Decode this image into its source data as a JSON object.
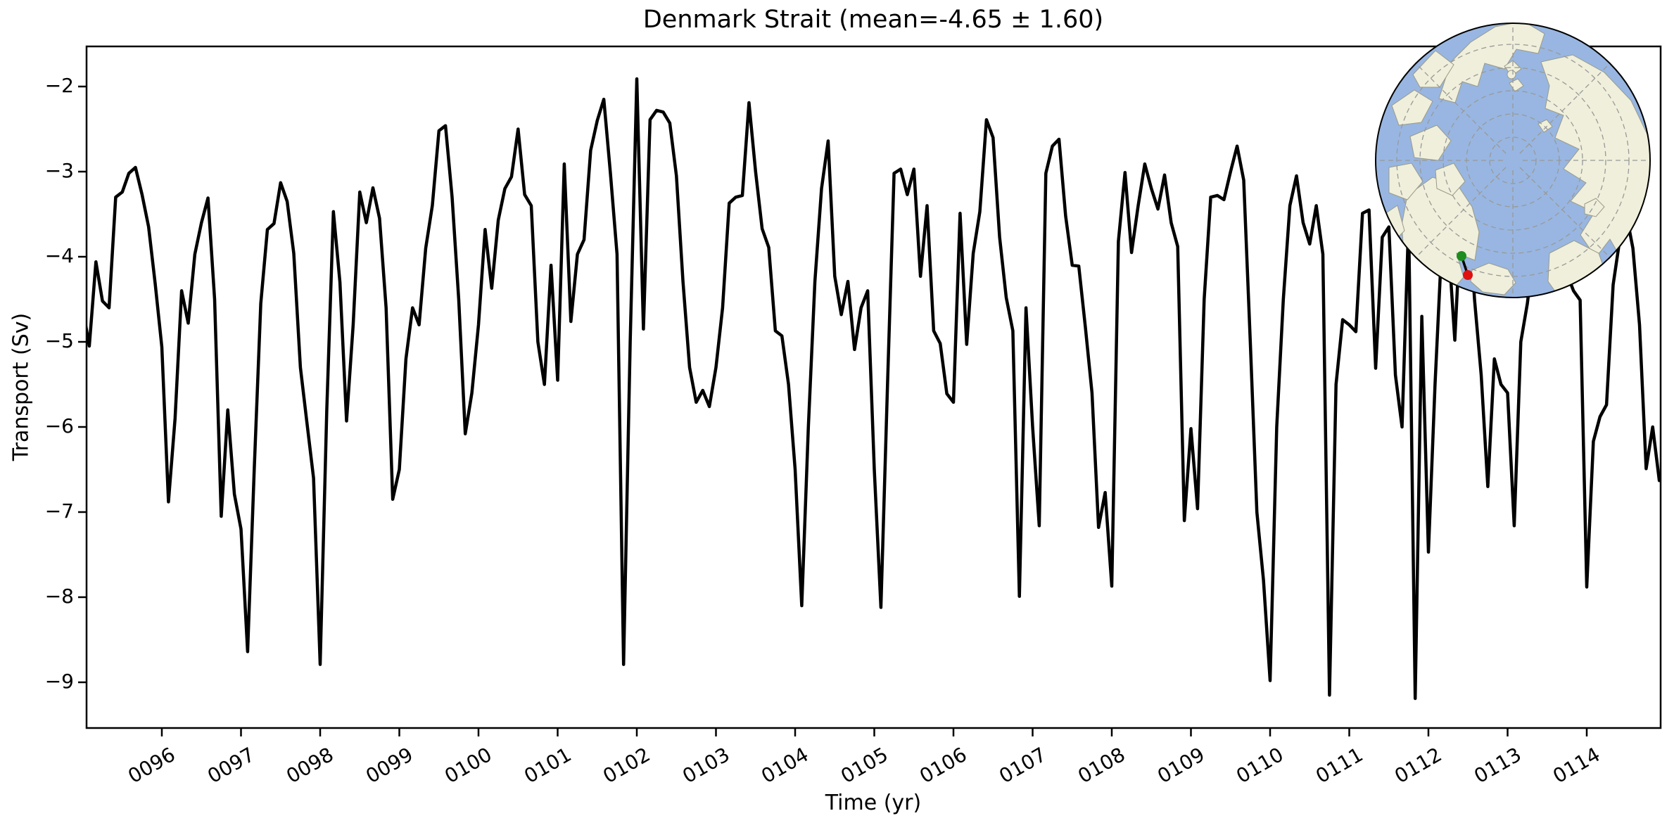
{
  "title": "Denmark Strait (mean=-4.65 ± 1.60)",
  "axes": {
    "xlabel": "Time (yr)",
    "ylabel": "Transport (Sv)",
    "x_tick_labels": [
      "0096",
      "0097",
      "0098",
      "0099",
      "0100",
      "0101",
      "0102",
      "0103",
      "0104",
      "0105",
      "0106",
      "0107",
      "0108",
      "0109",
      "0110",
      "0111",
      "0112",
      "0113",
      "0114"
    ],
    "x_tick_years": [
      96,
      97,
      98,
      99,
      100,
      101,
      102,
      103,
      104,
      105,
      106,
      107,
      108,
      109,
      110,
      111,
      112,
      113,
      114
    ],
    "y_tick_labels": [
      "−2",
      "−3",
      "−4",
      "−5",
      "−6",
      "−7",
      "−8",
      "−9"
    ],
    "y_tick_values": [
      -2,
      -3,
      -4,
      -5,
      -6,
      -7,
      -8,
      -9
    ],
    "xlim": [
      95.05,
      114.96
    ],
    "ylim": [
      -9.54,
      -1.53
    ]
  },
  "chart_data": {
    "type": "line",
    "title": "Denmark Strait (mean=-4.65 ± 1.60)",
    "xlabel": "Time (yr)",
    "ylabel": "Transport (Sv)",
    "mean": -4.65,
    "std": 1.6,
    "grid": false,
    "legend": "none",
    "line_color": "#000000",
    "line_width": 4.5,
    "frequency": "monthly",
    "start_year": 95,
    "start_month": 1,
    "xlim": [
      95.05,
      114.96
    ],
    "ylim": [
      -9.54,
      -1.53
    ],
    "series": [
      {
        "name": "Denmark Strait transport (Sv)",
        "values": [
          -4.6,
          -5.05,
          -4.06,
          -4.52,
          -4.6,
          -3.3,
          -3.24,
          -3.02,
          -2.95,
          -3.27,
          -3.65,
          -4.32,
          -5.06,
          -6.88,
          -5.9,
          -4.4,
          -4.78,
          -3.97,
          -3.6,
          -3.31,
          -4.5,
          -7.05,
          -5.8,
          -6.79,
          -7.2,
          -8.64,
          -6.5,
          -4.55,
          -3.68,
          -3.61,
          -3.13,
          -3.35,
          -3.96,
          -5.3,
          -5.95,
          -6.6,
          -8.79,
          -5.8,
          -3.47,
          -4.3,
          -5.93,
          -4.8,
          -3.24,
          -3.6,
          -3.19,
          -3.55,
          -4.6,
          -6.85,
          -6.5,
          -5.2,
          -4.6,
          -4.8,
          -3.9,
          -3.4,
          -2.52,
          -2.46,
          -3.3,
          -4.5,
          -6.08,
          -5.6,
          -4.8,
          -3.68,
          -4.37,
          -3.57,
          -3.2,
          -3.06,
          -2.5,
          -3.27,
          -3.4,
          -5.0,
          -5.5,
          -4.1,
          -5.45,
          -2.91,
          -4.76,
          -3.97,
          -3.8,
          -2.75,
          -2.4,
          -2.15,
          -3.02,
          -3.97,
          -8.79,
          -5.0,
          -1.91,
          -4.85,
          -2.39,
          -2.28,
          -2.3,
          -2.43,
          -3.05,
          -4.29,
          -5.3,
          -5.71,
          -5.57,
          -5.76,
          -5.3,
          -4.6,
          -3.37,
          -3.3,
          -3.28,
          -2.19,
          -3.0,
          -3.67,
          -3.89,
          -4.87,
          -4.93,
          -5.5,
          -6.5,
          -8.1,
          -6.0,
          -4.29,
          -3.2,
          -2.64,
          -4.23,
          -4.68,
          -4.29,
          -5.09,
          -4.6,
          -4.4,
          -6.5,
          -8.12,
          -5.5,
          -3.02,
          -2.97,
          -3.27,
          -2.97,
          -4.23,
          -3.4,
          -4.87,
          -5.02,
          -5.61,
          -5.71,
          -3.49,
          -5.03,
          -3.96,
          -3.47,
          -2.39,
          -2.6,
          -3.77,
          -4.48,
          -4.87,
          -7.99,
          -4.6,
          -6.0,
          -7.16,
          -3.02,
          -2.7,
          -2.62,
          -3.52,
          -4.1,
          -4.11,
          -4.83,
          -5.6,
          -7.18,
          -6.77,
          -7.87,
          -3.82,
          -3.01,
          -3.95,
          -3.4,
          -2.91,
          -3.2,
          -3.44,
          -3.04,
          -3.6,
          -3.88,
          -7.1,
          -6.02,
          -6.96,
          -4.5,
          -3.3,
          -3.28,
          -3.33,
          -3.0,
          -2.7,
          -3.1,
          -5.01,
          -7.0,
          -7.8,
          -8.98,
          -6.0,
          -4.5,
          -3.4,
          -3.05,
          -3.6,
          -3.85,
          -3.4,
          -3.97,
          -9.15,
          -5.5,
          -4.74,
          -4.8,
          -4.88,
          -3.49,
          -3.45,
          -5.31,
          -3.77,
          -3.65,
          -5.39,
          -6.0,
          -3.57,
          -9.19,
          -4.7,
          -7.47,
          -5.5,
          -3.88,
          -3.8,
          -4.98,
          -3.4,
          -3.35,
          -4.51,
          -5.39,
          -6.7,
          -5.2,
          -5.5,
          -5.6,
          -7.16,
          -5.0,
          -4.55,
          -3.9,
          -3.5,
          -3.3,
          -3.6,
          -3.9,
          -4.2,
          -4.4,
          -4.51,
          -7.88,
          -6.17,
          -5.88,
          -5.74,
          -4.33,
          -3.8,
          -3.5,
          -3.9,
          -4.8,
          -6.49,
          -6.0,
          -6.63
        ]
      }
    ]
  },
  "inset_map": {
    "projection": "north-polar",
    "ocean_color": "#98b6e1",
    "land_color": "#efefdb",
    "coast_color": "#9a9a88",
    "graticule_color": "#999999",
    "border_color": "#000000",
    "markers": [
      {
        "name": "green-marker",
        "color": "#1e8c1e"
      },
      {
        "name": "red-marker",
        "color": "#e01010"
      }
    ],
    "marker_link_color": "#000000"
  }
}
